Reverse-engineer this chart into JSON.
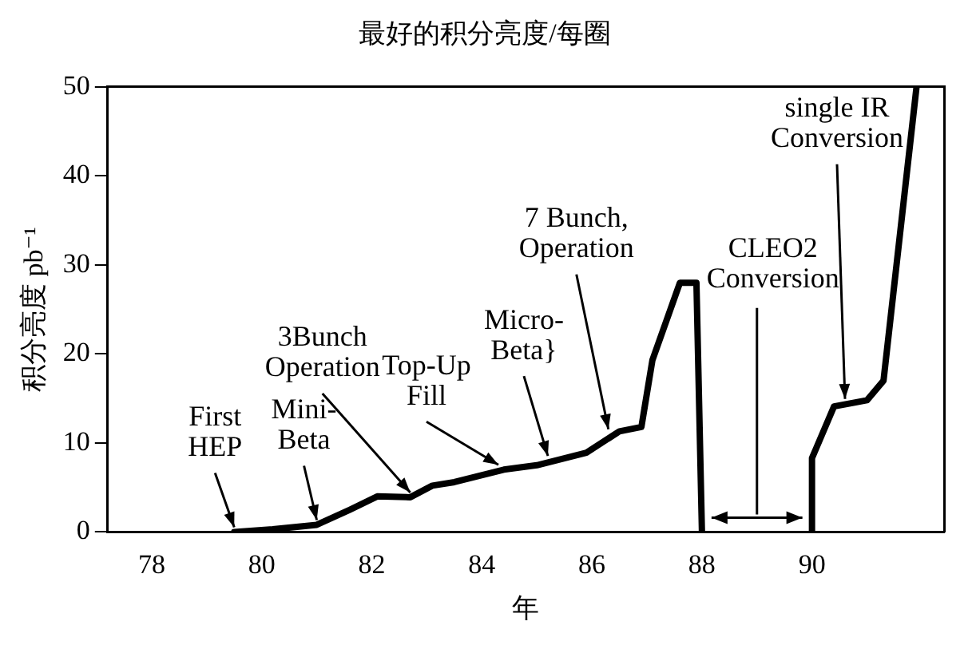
{
  "chart_data": {
    "type": "line",
    "title": "最好的积分亮度/每圈",
    "xlabel": "年",
    "ylabel": "积分亮度 pb⁻¹",
    "x": [
      79.5,
      80.2,
      81,
      81.6,
      82.1,
      82.7,
      83.1,
      83.5,
      84.4,
      85,
      85.9,
      86.5,
      86.9,
      87.1,
      87.6,
      87.9,
      88,
      89,
      90,
      90,
      90.4,
      91,
      91.3,
      91.9
    ],
    "series": [
      {
        "color": "#000000",
        "values": [
          0,
          0.3,
          0.8,
          2.5,
          4,
          3.9,
          5.2,
          5.6,
          7,
          7.5,
          8.9,
          11.3,
          11.8,
          19.3,
          28,
          28,
          0,
          null,
          0,
          8.3,
          14.1,
          14.8,
          17,
          50
        ]
      }
    ],
    "xlim": [
      77.2,
      92.4
    ],
    "xticks": [
      78,
      80,
      82,
      84,
      86,
      88,
      90
    ],
    "ylim": [
      0,
      50
    ],
    "yticks": [
      0,
      10,
      20,
      30,
      40,
      50
    ],
    "grid": false,
    "legend": false,
    "marker": "none",
    "line_style": "solid",
    "annotations": [
      {
        "text": "First\nHEP",
        "x": 79.5,
        "y": 0
      },
      {
        "text": "Mini-\nBeta",
        "x": 81,
        "y": 0.8
      },
      {
        "text": "3Bunch\nOperation",
        "x": 82.7,
        "y": 3.9
      },
      {
        "text": "Top-Up\nFill",
        "x": 84.3,
        "y": 7
      },
      {
        "text": "Micro-\nBeta}",
        "x": 85.2,
        "y": 8
      },
      {
        "text": "7 Bunch,\nOperation",
        "x": 86.3,
        "y": 11
      },
      "CLEO2\nConversion",
      {
        "text": "single IR\nConversion",
        "x": 90.6,
        "y": 14.4
      }
    ]
  }
}
